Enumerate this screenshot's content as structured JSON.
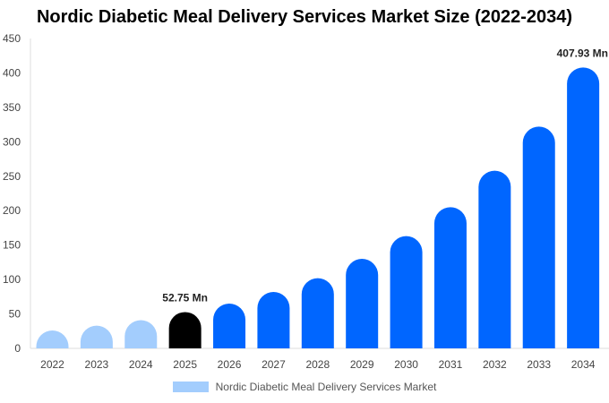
{
  "chart_data": {
    "type": "bar",
    "title": "Nordic Diabetic Meal Delivery Services Market Size (2022-2034)",
    "categories": [
      "2022",
      "2023",
      "2024",
      "2025",
      "2026",
      "2027",
      "2028",
      "2029",
      "2030",
      "2031",
      "2032",
      "2033",
      "2034"
    ],
    "series": [
      {
        "name": "Nordic Diabetic Meal Delivery Services Market",
        "values": [
          26,
          33,
          41,
          52.75,
          65,
          82,
          102,
          130,
          163,
          205,
          258,
          322,
          407.93
        ]
      }
    ],
    "ylim": [
      0,
      450
    ],
    "yticks": [
      0,
      50,
      100,
      150,
      200,
      250,
      300,
      350,
      400,
      450
    ],
    "xlabel": "",
    "ylabel": "",
    "data_labels": [
      {
        "index": 3,
        "text": "52.75 Mn"
      },
      {
        "index": 12,
        "text": "407.93 Mn"
      }
    ],
    "bar_colors": {
      "historical": "#a3cdfd",
      "current": "#000000",
      "forecast": "#0066ff"
    },
    "historical_years": [
      "2022",
      "2023",
      "2024"
    ],
    "current_year": "2025",
    "legend": {
      "label": "Nordic Diabetic Meal Delivery Services Market",
      "color": "#a3cdfd",
      "position": "bottom"
    },
    "grid": false
  }
}
